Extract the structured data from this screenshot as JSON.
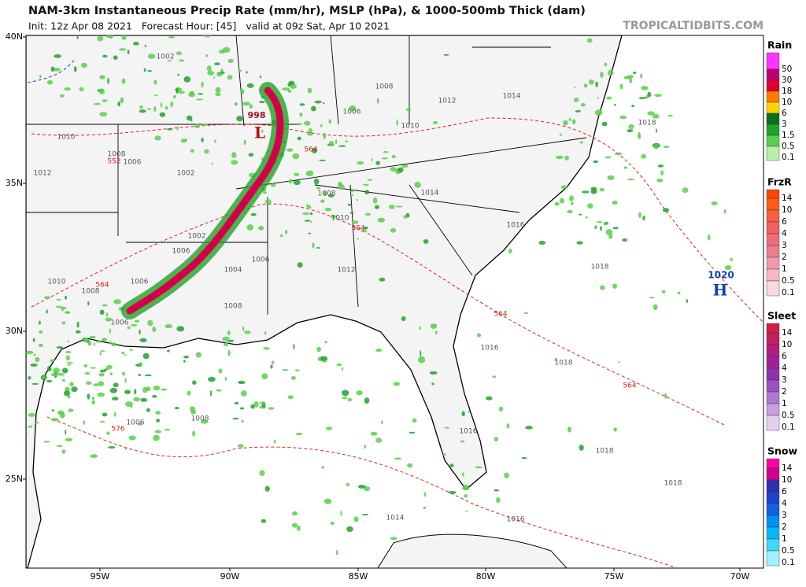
{
  "header": {
    "title": "NAM-3km Instantaneous Precip Rate (mm/hr), MSLP (hPa), & 1000-500mb Thick (dam)",
    "subtitle": "Init: 12z Apr 08 2021   Forecast Hour: [45]   valid at 09z Sat, Apr 10 2021",
    "credit": "TROPICALTIDBITS.COM"
  },
  "map": {
    "lat_labels": [
      "40N",
      "35N",
      "30N",
      "25N"
    ],
    "lon_labels": [
      "95W",
      "90W",
      "85W",
      "80W",
      "75W",
      "70W"
    ],
    "isobar_labels": [
      1002,
      1008,
      1012,
      1014,
      1006,
      1010,
      1018,
      1010,
      1008,
      1006,
      1012,
      1002,
      1008,
      1014,
      1010,
      1016,
      1002,
      1006,
      1006,
      1004,
      1012,
      1018,
      1010,
      1008,
      1006,
      1008,
      1006,
      1016,
      1018,
      1006,
      1008,
      1016,
      1018,
      1018,
      1014,
      1016
    ],
    "thickness_labels": [
      552,
      564,
      564,
      564,
      564,
      564,
      576
    ],
    "low": {
      "pressure": 998,
      "label": "L"
    },
    "high": {
      "pressure": 1020,
      "label": "H"
    }
  },
  "legends": [
    {
      "title": "Rain",
      "levels": [
        50,
        30,
        18,
        10,
        6,
        3,
        1.5,
        0.5,
        0.1
      ],
      "colors": [
        "#ff33ff",
        "#c00070",
        "#e00030",
        "#ff7a00",
        "#ffd400",
        "#0b6e1a",
        "#1fa32a",
        "#58d04a",
        "#b6f0a6"
      ]
    },
    {
      "title": "FrzR",
      "levels": [
        14,
        10,
        6,
        4,
        3,
        2,
        1,
        0.5,
        0.1
      ],
      "colors": [
        "#ff4500",
        "#ff5a1a",
        "#f86040",
        "#f26060",
        "#ee6f7a",
        "#ea7f90",
        "#f09aaa",
        "#f6b8c4",
        "#fbd8de"
      ]
    },
    {
      "title": "Sleet",
      "levels": [
        14,
        10,
        6,
        4,
        3,
        2,
        1,
        0.5,
        0.1
      ],
      "colors": [
        "#d0204a",
        "#c02060",
        "#b01e80",
        "#a0209a",
        "#9030b0",
        "#9c50c0",
        "#b078d0",
        "#c8a0e0",
        "#e4cff0"
      ]
    },
    {
      "title": "Snow",
      "levels": [
        14,
        10,
        6,
        4,
        3,
        2,
        1,
        0.5,
        0.1
      ],
      "colors": [
        "#ff00a8",
        "#d00090",
        "#3030b0",
        "#2040d0",
        "#1060e0",
        "#0090f0",
        "#00b8f8",
        "#40d8ff",
        "#a0f0ff"
      ]
    }
  ]
}
